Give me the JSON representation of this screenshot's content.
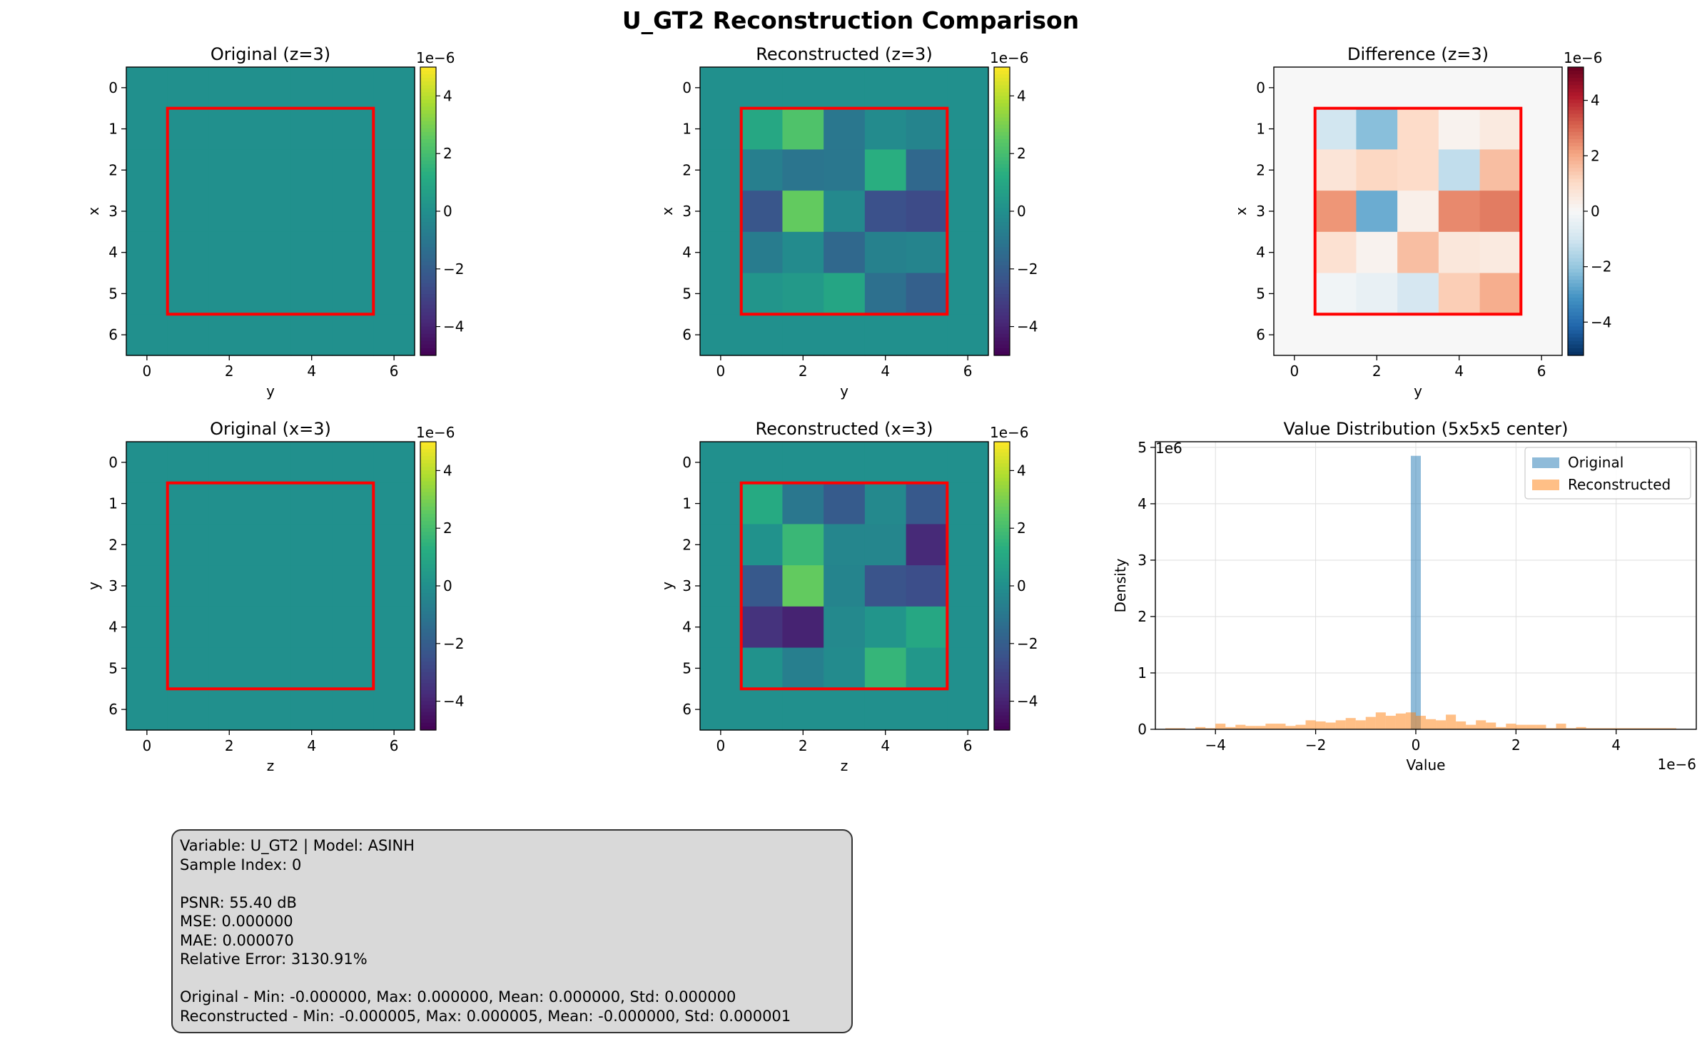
{
  "title": "U_GT2 Reconstruction Comparison",
  "colors": {
    "highlight_box": "#ff0000",
    "original_hist": "#1f77b4",
    "reconstructed_hist": "#ff7f0e"
  },
  "chart_data": [
    {
      "type": "heatmap",
      "title": "Original (z=3)",
      "xlabel": "y",
      "ylabel": "x",
      "colormap": "viridis",
      "clim": [
        -5e-06,
        5e-06
      ],
      "colorbar_ticks": [
        "−4",
        "−2",
        "0",
        "2",
        "4"
      ],
      "colorbar_offset": "1e−6",
      "xticks": [
        "0",
        "2",
        "4",
        "6"
      ],
      "yticks": [
        "0",
        "1",
        "2",
        "3",
        "4",
        "5",
        "6"
      ],
      "highlight_box": {
        "from": [
          1,
          1
        ],
        "to": [
          5,
          5
        ]
      },
      "values_e6": [
        [
          0,
          0,
          0,
          0,
          0,
          0,
          0
        ],
        [
          0,
          0,
          0,
          0,
          0,
          0,
          0
        ],
        [
          0,
          0,
          0,
          0,
          0,
          0,
          0
        ],
        [
          0,
          0,
          0,
          0,
          0,
          0,
          0
        ],
        [
          0,
          0,
          0,
          0,
          0,
          0,
          0
        ],
        [
          0,
          0,
          0,
          0,
          0,
          0,
          0
        ],
        [
          0,
          0,
          0,
          0,
          0,
          0,
          0
        ]
      ]
    },
    {
      "type": "heatmap",
      "title": "Reconstructed (z=3)",
      "xlabel": "y",
      "ylabel": "x",
      "colormap": "viridis",
      "clim": [
        -5e-06,
        5e-06
      ],
      "colorbar_ticks": [
        "−4",
        "−2",
        "0",
        "2",
        "4"
      ],
      "colorbar_offset": "1e−6",
      "xticks": [
        "0",
        "2",
        "4",
        "6"
      ],
      "yticks": [
        "0",
        "1",
        "2",
        "3",
        "4",
        "5",
        "6"
      ],
      "highlight_box": {
        "from": [
          1,
          1
        ],
        "to": [
          5,
          5
        ]
      },
      "values_e6": [
        [
          0,
          0,
          0,
          0,
          0,
          0,
          0
        ],
        [
          0,
          1.0,
          2.2,
          -1.0,
          -0.2,
          -0.5,
          0
        ],
        [
          0,
          -0.7,
          -1.1,
          -1.0,
          1.3,
          -1.6,
          0
        ],
        [
          0,
          -2.3,
          2.6,
          -0.3,
          -2.5,
          -2.7,
          0
        ],
        [
          0,
          -0.8,
          -0.2,
          -1.6,
          -0.6,
          -0.5,
          0
        ],
        [
          0,
          0.2,
          0.4,
          0.9,
          -1.3,
          -1.9,
          0
        ],
        [
          0,
          0,
          0,
          0,
          0,
          0,
          0
        ]
      ]
    },
    {
      "type": "heatmap",
      "title": "Difference (z=3)",
      "xlabel": "y",
      "ylabel": "x",
      "colormap": "RdBu_r",
      "clim": [
        -5.2e-06,
        5.2e-06
      ],
      "colorbar_ticks": [
        "−4",
        "−2",
        "0",
        "2",
        "4"
      ],
      "colorbar_offset": "1e−6",
      "xticks": [
        "0",
        "2",
        "4",
        "6"
      ],
      "yticks": [
        "0",
        "1",
        "2",
        "3",
        "4",
        "5",
        "6"
      ],
      "highlight_box": {
        "from": [
          1,
          1
        ],
        "to": [
          5,
          5
        ]
      },
      "values_e6": [
        [
          0,
          0,
          0,
          0,
          0,
          0,
          0
        ],
        [
          0,
          -1.0,
          -2.2,
          1.0,
          0.2,
          0.5,
          0
        ],
        [
          0,
          0.7,
          1.1,
          1.0,
          -1.3,
          1.6,
          0
        ],
        [
          0,
          2.3,
          -2.6,
          0.3,
          2.5,
          2.7,
          0
        ],
        [
          0,
          0.8,
          0.2,
          1.6,
          0.6,
          0.5,
          0
        ],
        [
          0,
          -0.2,
          -0.4,
          -0.9,
          1.3,
          1.9,
          0
        ],
        [
          0,
          0,
          0,
          0,
          0,
          0,
          0
        ]
      ]
    },
    {
      "type": "heatmap",
      "title": "Original (x=3)",
      "xlabel": "z",
      "ylabel": "y",
      "colormap": "viridis",
      "clim": [
        -5e-06,
        5e-06
      ],
      "colorbar_ticks": [
        "−4",
        "−2",
        "0",
        "2",
        "4"
      ],
      "colorbar_offset": "1e−6",
      "xticks": [
        "0",
        "2",
        "4",
        "6"
      ],
      "yticks": [
        "0",
        "1",
        "2",
        "3",
        "4",
        "5",
        "6"
      ],
      "highlight_box": {
        "from": [
          1,
          1
        ],
        "to": [
          5,
          5
        ]
      },
      "values_e6": [
        [
          0,
          0,
          0,
          0,
          0,
          0,
          0
        ],
        [
          0,
          0,
          0,
          0,
          0,
          0,
          0
        ],
        [
          0,
          0,
          0,
          0,
          0,
          0,
          0
        ],
        [
          0,
          0,
          0,
          0,
          0,
          0,
          0
        ],
        [
          0,
          0,
          0,
          0,
          0,
          0,
          0
        ],
        [
          0,
          0,
          0,
          0,
          0,
          0,
          0
        ],
        [
          0,
          0,
          0,
          0,
          0,
          0,
          0
        ]
      ]
    },
    {
      "type": "heatmap",
      "title": "Reconstructed (x=3)",
      "xlabel": "z",
      "ylabel": "y",
      "colormap": "viridis",
      "clim": [
        -5e-06,
        5e-06
      ],
      "colorbar_ticks": [
        "−4",
        "−2",
        "0",
        "2",
        "4"
      ],
      "colorbar_offset": "1e−6",
      "xticks": [
        "0",
        "2",
        "4",
        "6"
      ],
      "yticks": [
        "0",
        "1",
        "2",
        "3",
        "4",
        "5",
        "6"
      ],
      "highlight_box": {
        "from": [
          1,
          1
        ],
        "to": [
          5,
          5
        ]
      },
      "values_e6": [
        [
          0,
          0,
          0,
          0,
          0,
          0,
          0
        ],
        [
          0,
          1.1,
          -1.0,
          -2.1,
          -0.3,
          -2.2,
          0
        ],
        [
          0,
          0.1,
          1.7,
          -0.4,
          -0.4,
          -3.8,
          0
        ],
        [
          0,
          -2.2,
          2.6,
          -0.5,
          -2.4,
          -2.6,
          0
        ],
        [
          0,
          -3.5,
          -4.0,
          -0.3,
          0.2,
          1.0,
          0
        ],
        [
          0,
          0.1,
          -0.7,
          -0.2,
          1.6,
          0.3,
          0
        ],
        [
          0,
          0,
          0,
          0,
          0,
          0,
          0
        ]
      ]
    },
    {
      "type": "bar",
      "subtype": "histogram",
      "title": "Value Distribution (5x5x5 center)",
      "xlabel": "Value",
      "ylabel": "Density",
      "xlim": [
        -5.2e-06,
        5.6e-06
      ],
      "ylim": [
        0,
        5100000.0
      ],
      "x_offset": "1e−6",
      "y_offset": "1e6",
      "xticks": [
        "−4",
        "−2",
        "0",
        "2",
        "4"
      ],
      "yticks": [
        "0",
        "1",
        "2",
        "3",
        "4",
        "5"
      ],
      "grid": true,
      "legend_position": "top-right",
      "bin_width": 2e-07,
      "series": [
        {
          "name": "Original",
          "color": "#1f77b4",
          "bins": [
            {
              "start": -1e-07,
              "end": 1e-07,
              "density": 4850000.0
            }
          ]
        },
        {
          "name": "Reconstructed",
          "color": "#ff7f0e",
          "bin_start": -5e-06,
          "density_e6": [
            0.02,
            0.02,
            0,
            0.04,
            0.02,
            0.1,
            0.04,
            0.08,
            0.06,
            0.06,
            0.1,
            0.1,
            0.06,
            0.08,
            0.16,
            0.14,
            0.12,
            0.16,
            0.2,
            0.16,
            0.22,
            0.3,
            0.24,
            0.28,
            0.3,
            0.24,
            0.18,
            0.16,
            0.26,
            0.14,
            0.08,
            0.16,
            0.12,
            0.04,
            0.1,
            0.08,
            0.08,
            0.08,
            0.02,
            0.1,
            0.02,
            0.04,
            0.02,
            0.02,
            0.02,
            0.02,
            0.02,
            0.02,
            0.02,
            0.02,
            0.02
          ]
        }
      ]
    }
  ],
  "info": {
    "lines": [
      "Variable: U_GT2 | Model: ASINH",
      "Sample Index: 0",
      "",
      "PSNR: 55.40 dB",
      "MSE: 0.000000",
      "MAE: 0.000070",
      "Relative Error: 3130.91%",
      "",
      "Original - Min: -0.000000, Max: 0.000000, Mean: 0.000000, Std: 0.000000",
      "Reconstructed - Min: -0.000005, Max: 0.000005, Mean: -0.000000, Std: 0.000001"
    ]
  }
}
